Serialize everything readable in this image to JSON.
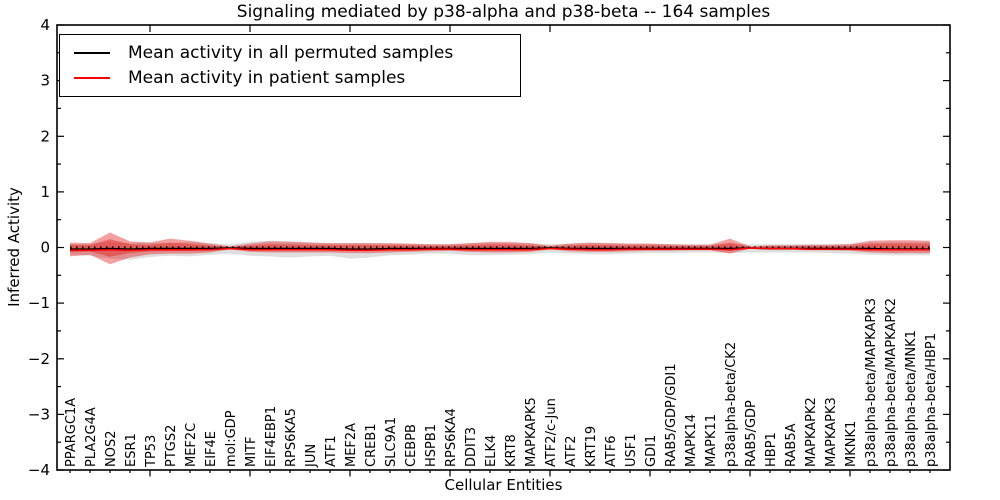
{
  "title": "Signaling mediated by p38-alpha and p38-beta -- 164 samples",
  "axes": {
    "xlabel": "Cellular Entities",
    "ylabel": "Inferred Activity"
  },
  "legend": {
    "items": [
      {
        "label": "Mean activity in all permuted samples",
        "color": "#000000"
      },
      {
        "label": "Mean activity in patient samples",
        "color": "#ff0000"
      }
    ]
  },
  "chart_data": {
    "type": "area",
    "title": "Signaling mediated by p38-alpha and p38-beta -- 164 samples",
    "xlabel": "Cellular Entities",
    "ylabel": "Inferred Activity",
    "ylim": [
      -4,
      4
    ],
    "yticks": [
      -4,
      -3,
      -2,
      -1,
      0,
      1,
      2,
      3,
      4
    ],
    "y_minor_step": 0.5,
    "x_major_tick_every": 5,
    "grid": false,
    "legend_position": "upper left",
    "zero_reference_line": 0,
    "categories": [
      "PPARGC1A",
      "PLA2G4A",
      "NOS2",
      "ESR1",
      "TP53",
      "PTGS2",
      "MEF2C",
      "EIF4E",
      "mol:GDP",
      "MITF",
      "EIF4EBP1",
      "RPS6KA5",
      "JUN",
      "ATF1",
      "MEF2A",
      "CREB1",
      "SLC9A1",
      "CEBPB",
      "HSPB1",
      "RPS6KA4",
      "DDIT3",
      "ELK4",
      "KRT8",
      "MAPKAPK5",
      "ATF2/c-Jun",
      "ATF2",
      "KRT19",
      "ATF6",
      "USF1",
      "GDI1",
      "RAB5/GDP/GDI1",
      "MAPK14",
      "MAPK11",
      "p38alpha-beta/CK2",
      "RAB5/GDP",
      "HBP1",
      "RAB5A",
      "MAPKAPK2",
      "MAPKAPK3",
      "MKNK1",
      "p38alpha-beta/MAPKAPK3",
      "p38alpha-beta/MAPKAPK2",
      "p38alpha-beta/MNK1",
      "p38alpha-beta/HBP1"
    ],
    "series": [
      {
        "name": "Permuted samples activity band",
        "type": "band",
        "color": "#999999",
        "opacity": 0.32,
        "upper": [
          0.06,
          0.07,
          0.1,
          0.08,
          0.09,
          0.08,
          0.1,
          0.08,
          0.06,
          0.1,
          0.12,
          0.11,
          0.09,
          0.08,
          0.08,
          0.08,
          0.07,
          0.07,
          0.06,
          0.06,
          0.08,
          0.09,
          0.08,
          0.08,
          0.06,
          0.07,
          0.08,
          0.08,
          0.07,
          0.07,
          0.06,
          0.06,
          0.06,
          0.07,
          0.06,
          0.06,
          0.06,
          0.06,
          0.06,
          0.07,
          0.09,
          0.1,
          0.1,
          0.1
        ],
        "lower": [
          -0.13,
          -0.15,
          -0.2,
          -0.22,
          -0.17,
          -0.15,
          -0.16,
          -0.13,
          -0.11,
          -0.15,
          -0.16,
          -0.18,
          -0.16,
          -0.15,
          -0.2,
          -0.18,
          -0.14,
          -0.13,
          -0.11,
          -0.11,
          -0.14,
          -0.14,
          -0.13,
          -0.12,
          -0.09,
          -0.11,
          -0.12,
          -0.12,
          -0.11,
          -0.1,
          -0.1,
          -0.09,
          -0.09,
          -0.1,
          -0.09,
          -0.09,
          -0.09,
          -0.09,
          -0.1,
          -0.11,
          -0.13,
          -0.14,
          -0.14,
          -0.14
        ]
      },
      {
        "name": "Patient samples activity band",
        "type": "band",
        "color": "#e31111",
        "opacity": 0.4,
        "upper": [
          0.09,
          0.08,
          0.27,
          0.11,
          0.09,
          0.16,
          0.12,
          0.07,
          0.02,
          0.07,
          0.11,
          0.1,
          0.09,
          0.08,
          0.08,
          0.08,
          0.08,
          0.07,
          0.06,
          0.06,
          0.08,
          0.1,
          0.1,
          0.08,
          0.03,
          0.07,
          0.09,
          0.08,
          0.07,
          0.07,
          0.06,
          0.05,
          0.05,
          0.16,
          0.02,
          0.04,
          0.04,
          0.05,
          0.05,
          0.06,
          0.12,
          0.13,
          0.13,
          0.12
        ],
        "lower": [
          -0.16,
          -0.13,
          -0.3,
          -0.18,
          -0.12,
          -0.11,
          -0.11,
          -0.09,
          -0.03,
          -0.08,
          -0.09,
          -0.09,
          -0.09,
          -0.09,
          -0.1,
          -0.1,
          -0.09,
          -0.08,
          -0.07,
          -0.06,
          -0.08,
          -0.09,
          -0.09,
          -0.08,
          -0.03,
          -0.07,
          -0.08,
          -0.08,
          -0.07,
          -0.06,
          -0.06,
          -0.05,
          -0.05,
          -0.11,
          -0.02,
          -0.04,
          -0.04,
          -0.05,
          -0.05,
          -0.06,
          -0.09,
          -0.1,
          -0.1,
          -0.1
        ]
      },
      {
        "name": "Mean activity in all permuted samples",
        "type": "line",
        "style": "solid",
        "color": "#000000",
        "values": [
          -0.03,
          -0.03,
          -0.02,
          -0.03,
          -0.02,
          -0.02,
          -0.02,
          -0.02,
          -0.01,
          -0.02,
          -0.02,
          -0.02,
          -0.02,
          -0.02,
          -0.03,
          -0.03,
          -0.02,
          -0.02,
          -0.02,
          -0.02,
          -0.02,
          -0.02,
          -0.02,
          -0.02,
          -0.01,
          -0.02,
          -0.02,
          -0.02,
          -0.02,
          -0.02,
          -0.02,
          -0.02,
          -0.02,
          -0.02,
          -0.01,
          -0.02,
          -0.02,
          -0.02,
          -0.02,
          -0.02,
          -0.02,
          -0.03,
          -0.03,
          -0.03
        ]
      },
      {
        "name": "Mean activity in patient samples",
        "type": "line",
        "style": "solid",
        "color": "#ff0000",
        "values": [
          -0.05,
          -0.05,
          -0.04,
          -0.05,
          -0.04,
          -0.04,
          -0.04,
          -0.04,
          -0.02,
          -0.04,
          -0.04,
          -0.04,
          -0.04,
          -0.04,
          -0.05,
          -0.05,
          -0.04,
          -0.04,
          -0.03,
          -0.03,
          -0.04,
          -0.04,
          -0.04,
          -0.04,
          -0.02,
          -0.03,
          -0.04,
          -0.04,
          -0.03,
          -0.03,
          -0.03,
          -0.03,
          -0.03,
          -0.04,
          -0.01,
          -0.02,
          -0.02,
          -0.03,
          -0.03,
          -0.03,
          -0.04,
          -0.04,
          -0.04,
          -0.04
        ]
      }
    ]
  }
}
